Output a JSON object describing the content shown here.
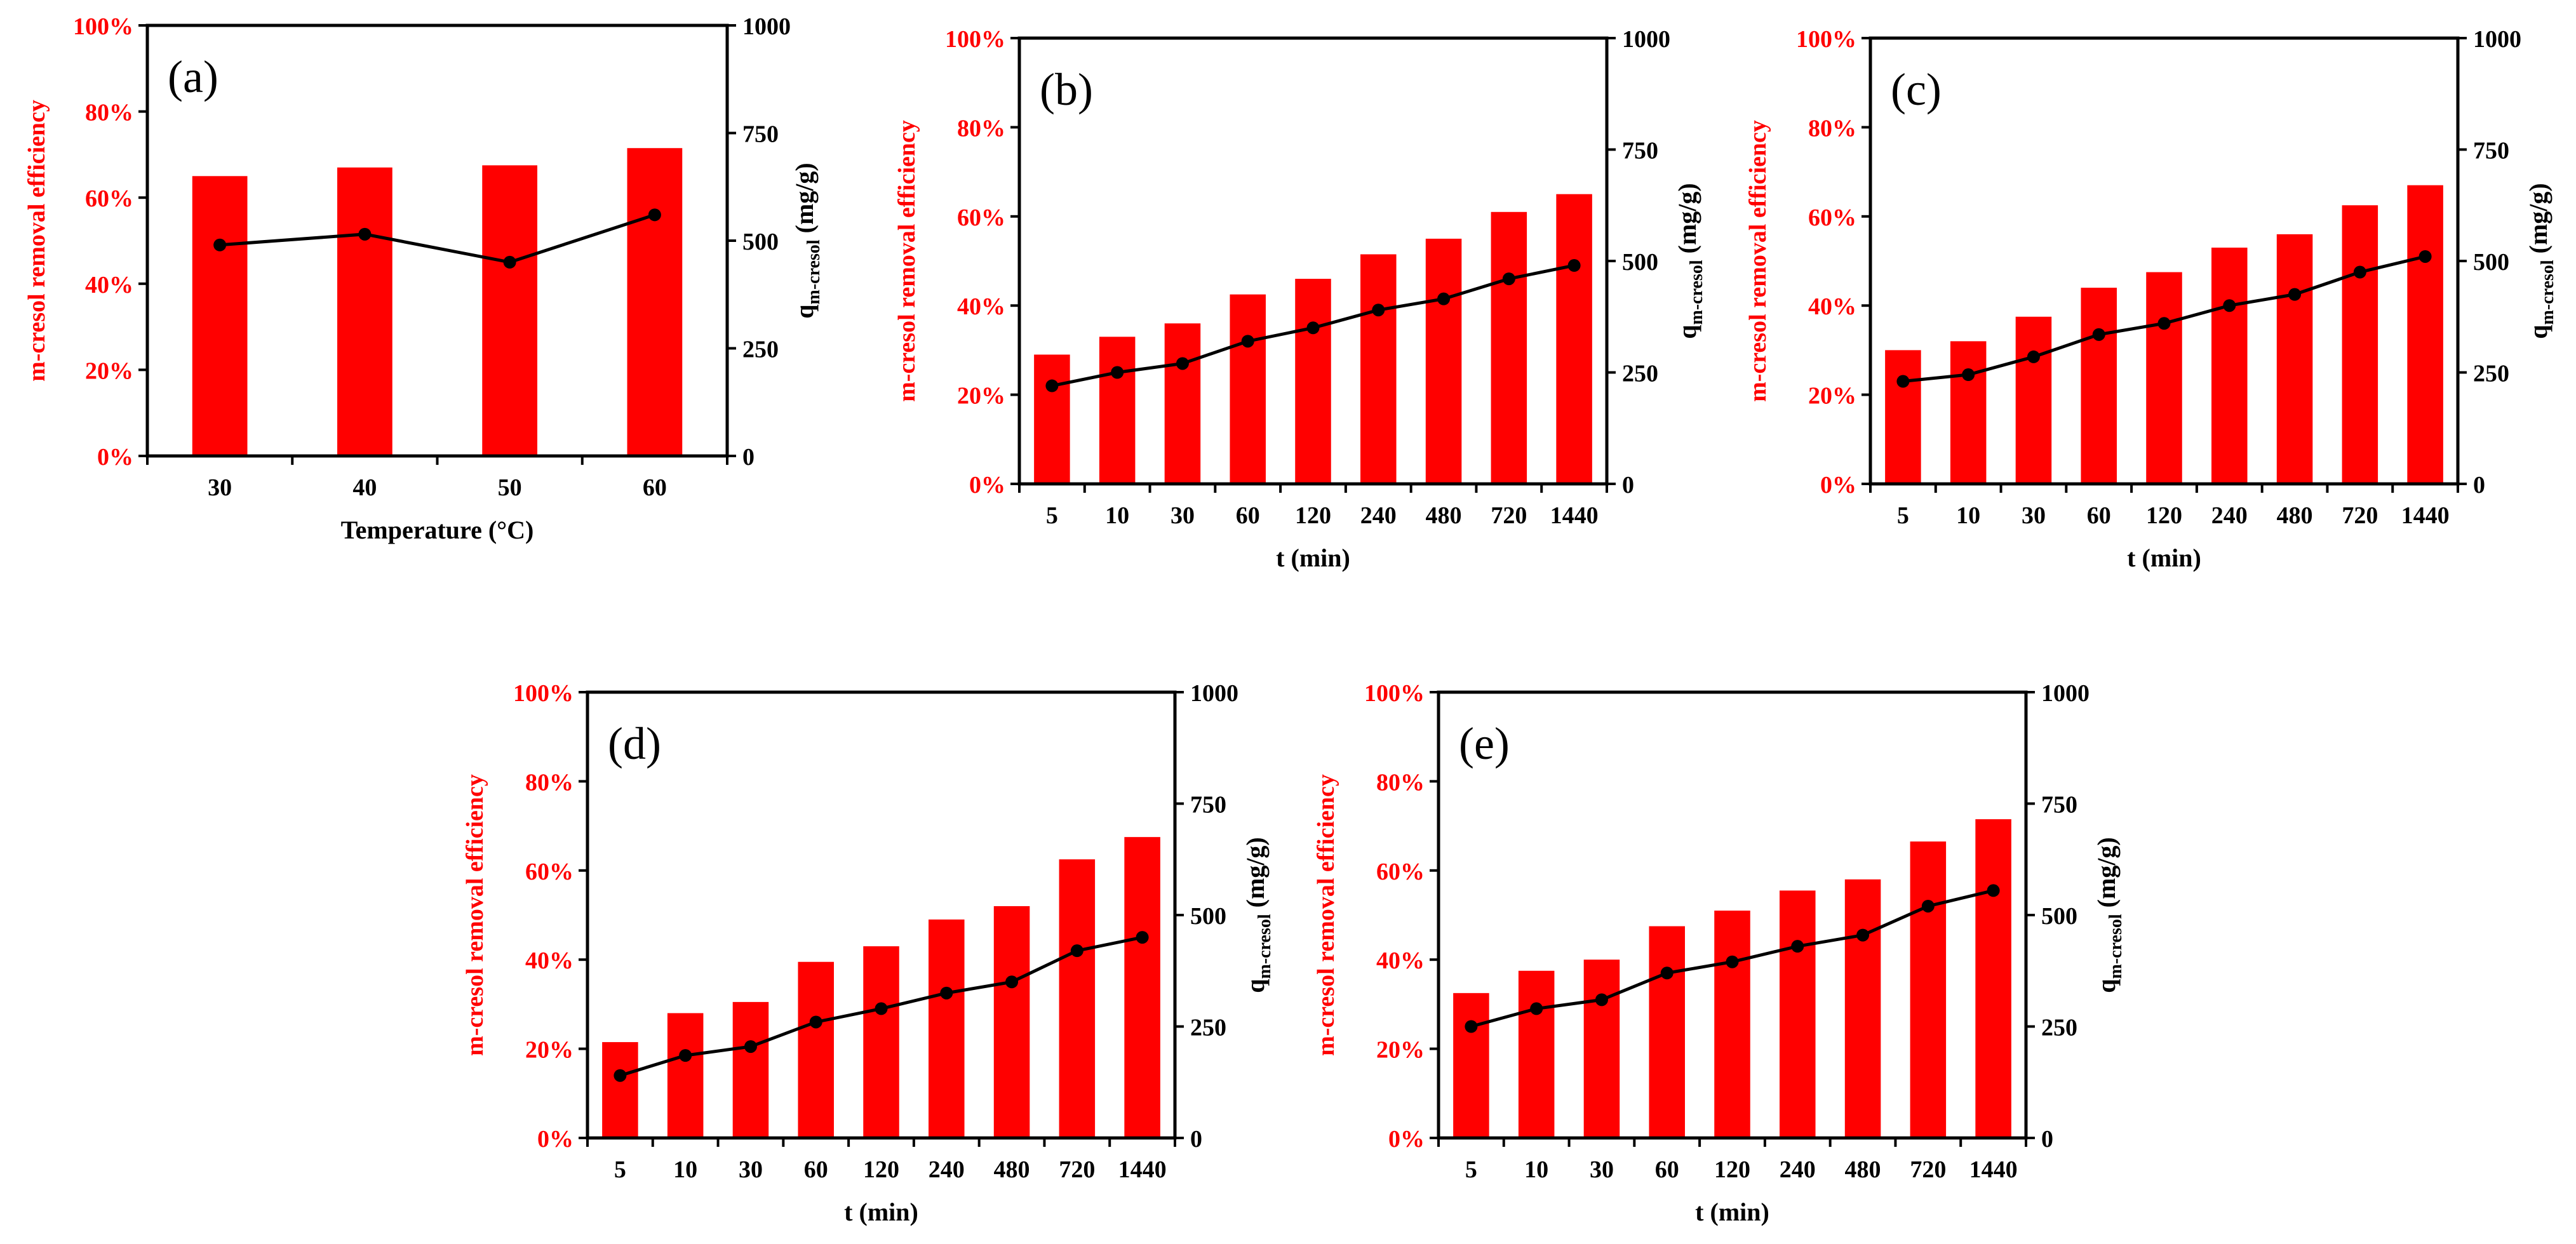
{
  "colors": {
    "bar": "#ff0000",
    "line": "#000000",
    "marker": "#000000",
    "left_axis_text": "#ff0000",
    "right_axis_text": "#000000"
  },
  "chart_data": [
    {
      "type": "bar",
      "panel_label": "(a)",
      "categories": [
        "30",
        "40",
        "50",
        "60"
      ],
      "series": [
        {
          "values": [
            65,
            67,
            67.5,
            71.5
          ],
          "axis": "left",
          "kind": "bar"
        },
        {
          "values": [
            490,
            515,
            450,
            560
          ],
          "axis": "right",
          "kind": "line"
        }
      ],
      "xlabel": "Temperature (°C)",
      "ylabel_left": "m-cresol removal efficiency",
      "ylabel_right": {
        "main": "q",
        "sub": "m-cresol",
        "unit": " (mg/g)"
      },
      "ylim_left": [
        0,
        100
      ],
      "yticks_left": [
        "0%",
        "20%",
        "40%",
        "60%",
        "80%",
        "100%"
      ],
      "ylim_right": [
        0,
        1000
      ],
      "yticks_right": [
        "0",
        "250",
        "500",
        "750",
        "1000"
      ],
      "grid": false,
      "legend": "none"
    },
    {
      "type": "bar",
      "panel_label": "(b)",
      "categories": [
        "5",
        "10",
        "30",
        "60",
        "120",
        "240",
        "480",
        "720",
        "1440"
      ],
      "series": [
        {
          "values": [
            29,
            33,
            36,
            42.5,
            46,
            51.5,
            55,
            61,
            65
          ],
          "axis": "left",
          "kind": "bar"
        },
        {
          "values": [
            220,
            250,
            270,
            320,
            350,
            390,
            415,
            460,
            490
          ],
          "axis": "right",
          "kind": "line"
        }
      ],
      "xlabel": "t (min)",
      "ylabel_left": "m-cresol removal efficiency",
      "ylabel_right": {
        "main": "q",
        "sub": "m-cresol",
        "unit": " (mg/g)"
      },
      "ylim_left": [
        0,
        100
      ],
      "yticks_left": [
        "0%",
        "20%",
        "40%",
        "60%",
        "80%",
        "100%"
      ],
      "ylim_right": [
        0,
        1000
      ],
      "yticks_right": [
        "0",
        "250",
        "500",
        "750",
        "1000"
      ],
      "grid": false,
      "legend": "none"
    },
    {
      "type": "bar",
      "panel_label": "(c)",
      "categories": [
        "5",
        "10",
        "30",
        "60",
        "120",
        "240",
        "480",
        "720",
        "1440"
      ],
      "series": [
        {
          "values": [
            30,
            32,
            37.5,
            44,
            47.5,
            53,
            56,
            62.5,
            67
          ],
          "axis": "left",
          "kind": "bar"
        },
        {
          "values": [
            230,
            245,
            285,
            335,
            360,
            400,
            425,
            475,
            510
          ],
          "axis": "right",
          "kind": "line"
        }
      ],
      "xlabel": "t (min)",
      "ylabel_left": "m-cresol removal efficiency",
      "ylabel_right": {
        "main": "q",
        "sub": "m-cresol",
        "unit": " (mg/g)"
      },
      "ylim_left": [
        0,
        100
      ],
      "yticks_left": [
        "0%",
        "20%",
        "40%",
        "60%",
        "80%",
        "100%"
      ],
      "ylim_right": [
        0,
        1000
      ],
      "yticks_right": [
        "0",
        "250",
        "500",
        "750",
        "1000"
      ],
      "grid": false,
      "legend": "none"
    },
    {
      "type": "bar",
      "panel_label": "(d)",
      "categories": [
        "5",
        "10",
        "30",
        "60",
        "120",
        "240",
        "480",
        "720",
        "1440"
      ],
      "series": [
        {
          "values": [
            21.5,
            28,
            30.5,
            39.5,
            43,
            49,
            52,
            62.5,
            67.5
          ],
          "axis": "left",
          "kind": "bar"
        },
        {
          "values": [
            140,
            185,
            205,
            260,
            290,
            325,
            350,
            420,
            450
          ],
          "axis": "right",
          "kind": "line"
        }
      ],
      "xlabel": "t (min)",
      "ylabel_left": "m-cresol removal efficiency",
      "ylabel_right": {
        "main": "q",
        "sub": "m-cresol",
        "unit": " (mg/g)"
      },
      "ylim_left": [
        0,
        100
      ],
      "yticks_left": [
        "0%",
        "20%",
        "40%",
        "60%",
        "80%",
        "100%"
      ],
      "ylim_right": [
        0,
        1000
      ],
      "yticks_right": [
        "0",
        "250",
        "500",
        "750",
        "1000"
      ],
      "grid": false,
      "legend": "none"
    },
    {
      "type": "bar",
      "panel_label": "(e)",
      "categories": [
        "5",
        "10",
        "30",
        "60",
        "120",
        "240",
        "480",
        "720",
        "1440"
      ],
      "series": [
        {
          "values": [
            32.5,
            37.5,
            40,
            47.5,
            51,
            55.5,
            58,
            66.5,
            71.5
          ],
          "axis": "left",
          "kind": "bar"
        },
        {
          "values": [
            250,
            290,
            310,
            370,
            395,
            430,
            455,
            520,
            555
          ],
          "axis": "right",
          "kind": "line"
        }
      ],
      "xlabel": "t (min)",
      "ylabel_left": "m-cresol removal efficiency",
      "ylabel_right": {
        "main": "q",
        "sub": "m-cresol",
        "unit": " (mg/g)"
      },
      "ylim_left": [
        0,
        100
      ],
      "yticks_left": [
        "0%",
        "20%",
        "40%",
        "60%",
        "80%",
        "100%"
      ],
      "ylim_right": [
        0,
        1000
      ],
      "yticks_right": [
        "0",
        "250",
        "500",
        "750",
        "1000"
      ],
      "grid": false,
      "legend": "none"
    }
  ]
}
